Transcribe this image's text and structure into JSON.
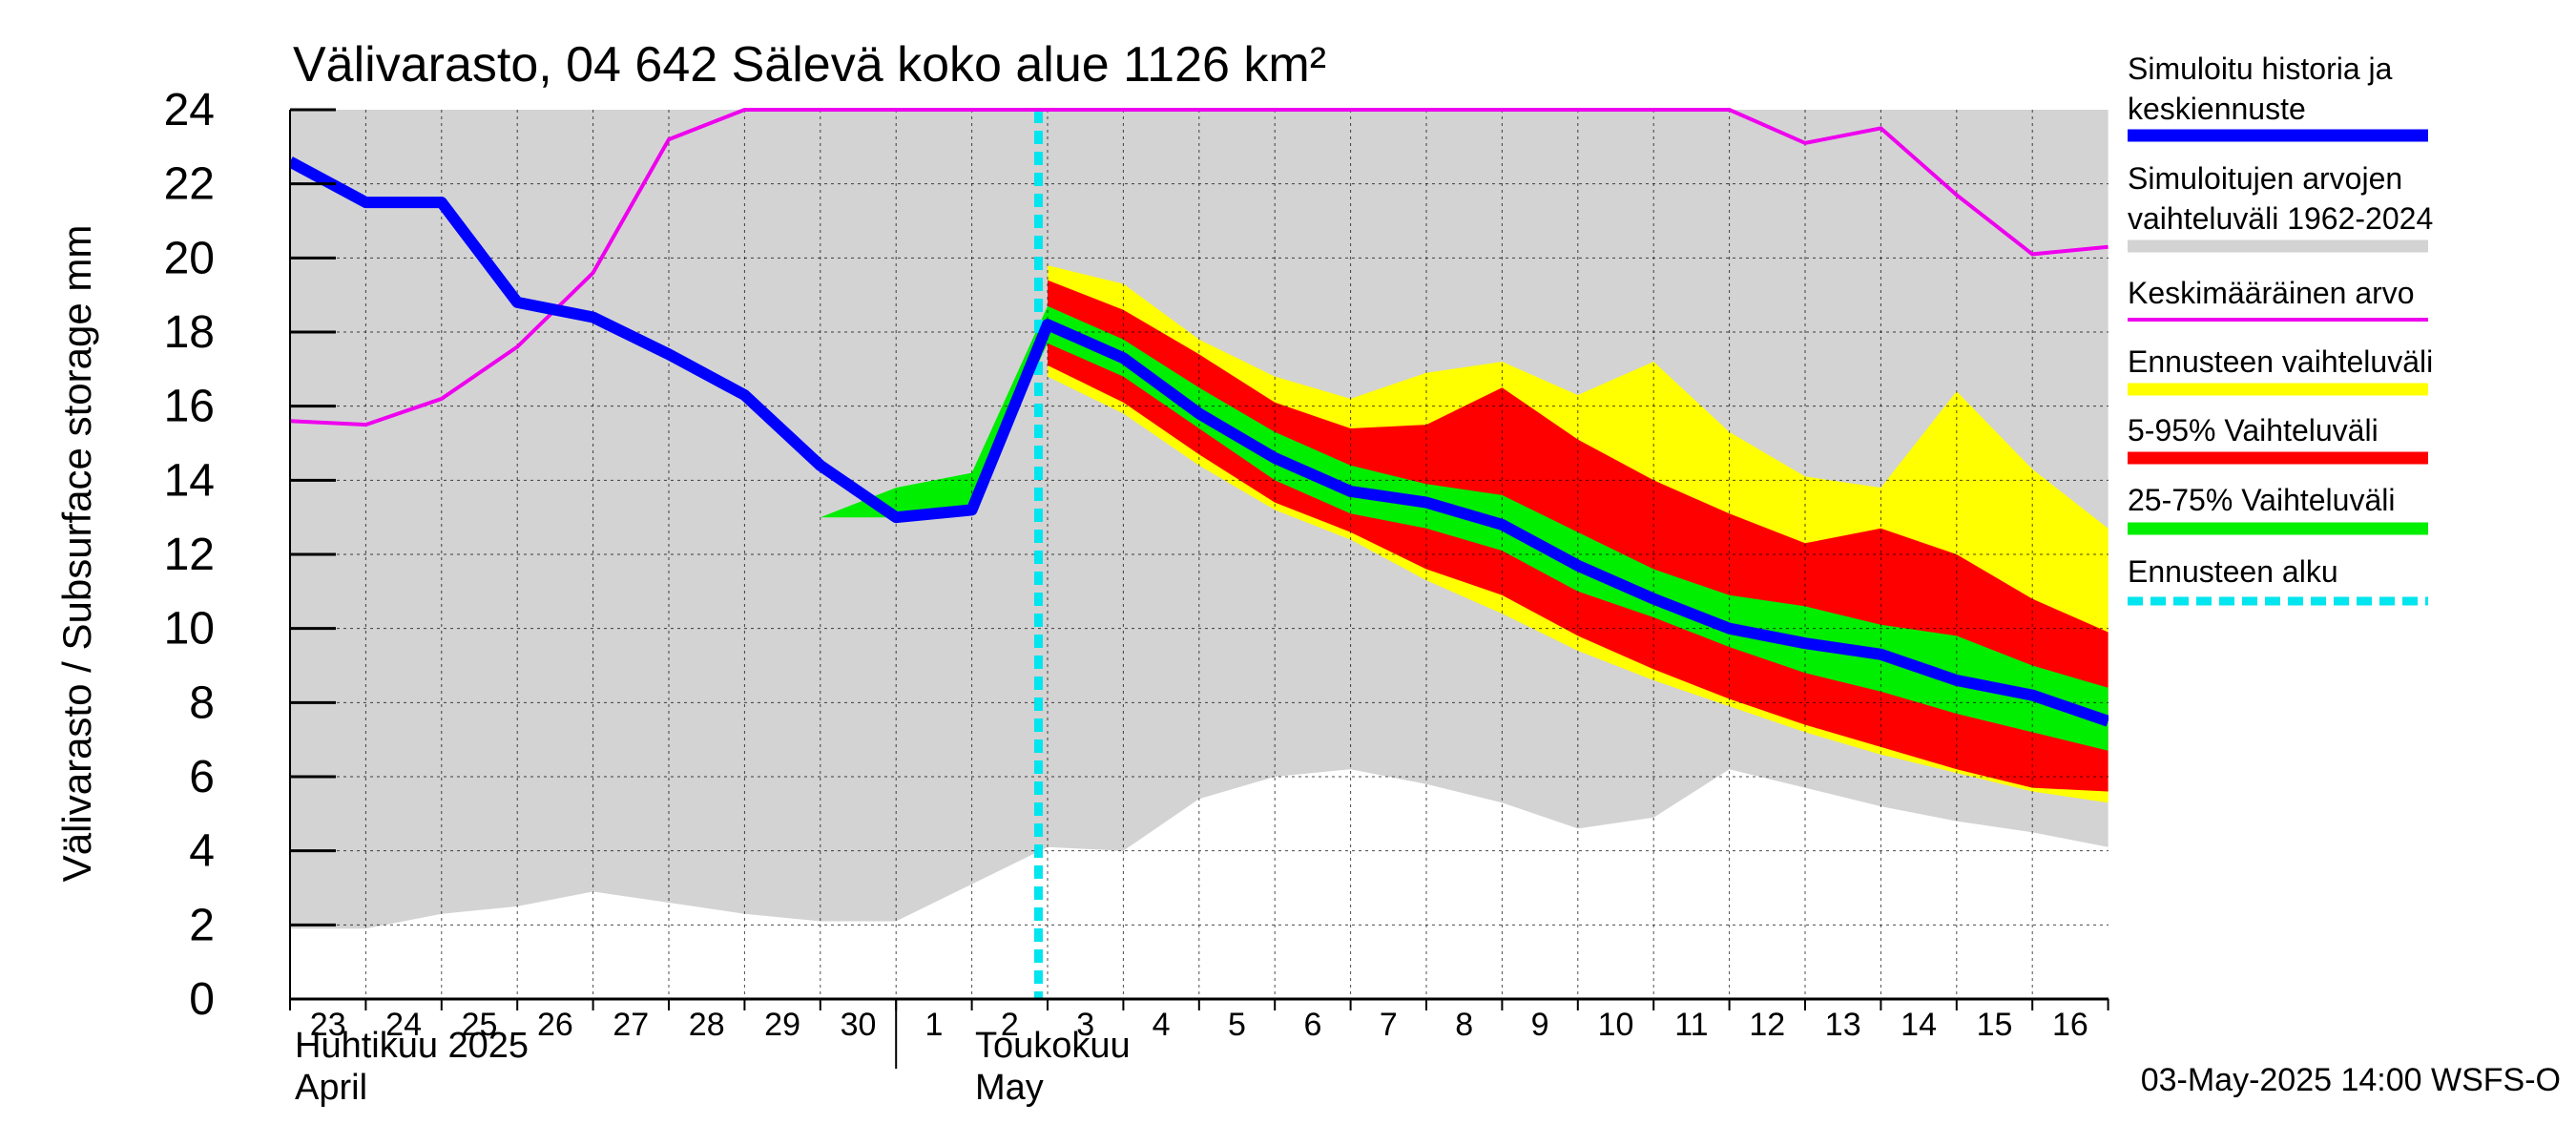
{
  "chart_data": {
    "type": "area",
    "title": "Välivarasto, 04 642 Sälevä koko alue 1126 km²",
    "ylabel": "Välivarasto / Subsurface storage  mm",
    "ylim": [
      0,
      24
    ],
    "yticks": [
      "0",
      "2",
      "4",
      "6",
      "8",
      "10",
      "12",
      "14",
      "16",
      "18",
      "20",
      "22",
      "24"
    ],
    "x_day_labels": [
      "23",
      "24",
      "25",
      "26",
      "27",
      "28",
      "29",
      "30",
      "1",
      "2",
      "3",
      "4",
      "5",
      "6",
      "7",
      "8",
      "9",
      "10",
      "11",
      "12",
      "13",
      "14",
      "15",
      "16"
    ],
    "month_labels": [
      {
        "fi": "Huhtikuu  2025",
        "en": "April"
      },
      {
        "fi": "Toukokuu",
        "en": "May"
      }
    ],
    "footer": "03-May-2025 14:00 WSFS-O",
    "forecast_start": "2025-05-03",
    "grid": true,
    "legend_position": "right",
    "legend": [
      {
        "label": "Simuloitu historia ja keskiennuste",
        "color": "#0000ff"
      },
      {
        "label": "Simuloitujen arvojen vaihteluväli 1962-2024",
        "color": "#d3d3d3"
      },
      {
        "label": "Keskimääräinen arvo",
        "color": "#ee00ee"
      },
      {
        "label": "Ennusteen vaihteluväli",
        "color": "#ffff00"
      },
      {
        "label": "5-95% Vaihteluväli",
        "color": "#ff0000"
      },
      {
        "label": "25-75% Vaihteluväli",
        "color": "#00ee00"
      },
      {
        "label": "Ennusteen alku",
        "color": "#00e5ee"
      }
    ],
    "x": [
      "2025-04-23",
      "2025-04-24",
      "2025-04-25",
      "2025-04-26",
      "2025-04-27",
      "2025-04-28",
      "2025-04-29",
      "2025-04-30",
      "2025-05-01",
      "2025-05-02",
      "2025-05-03",
      "2025-05-04",
      "2025-05-05",
      "2025-05-06",
      "2025-05-07",
      "2025-05-08",
      "2025-05-09",
      "2025-05-10",
      "2025-05-11",
      "2025-05-12",
      "2025-05-13",
      "2025-05-14",
      "2025-05-15",
      "2025-05-16",
      "2025-05-17"
    ],
    "series": [
      {
        "name": "Simuloitu historia ja keskiennuste",
        "x": [
          "2025-04-23",
          "2025-04-24",
          "2025-04-25",
          "2025-04-26",
          "2025-04-27",
          "2025-04-28",
          "2025-04-29",
          "2025-04-30",
          "2025-05-01",
          "2025-05-02",
          "2025-05-03",
          "2025-05-04",
          "2025-05-05",
          "2025-05-06",
          "2025-05-07",
          "2025-05-08",
          "2025-05-09",
          "2025-05-10",
          "2025-05-11",
          "2025-05-12",
          "2025-05-13",
          "2025-05-14",
          "2025-05-15",
          "2025-05-16",
          "2025-05-17"
        ],
        "values": [
          22.6,
          21.5,
          21.5,
          18.8,
          18.4,
          17.4,
          16.3,
          14.4,
          13.0,
          13.2,
          18.2,
          17.3,
          15.8,
          14.6,
          13.7,
          13.4,
          12.8,
          11.7,
          10.8,
          10.0,
          9.6,
          9.3,
          8.6,
          8.2,
          7.5
        ]
      },
      {
        "name": "Keskimääräinen arvo",
        "x": [
          "2025-04-23",
          "2025-04-24",
          "2025-04-25",
          "2025-04-26",
          "2025-04-27",
          "2025-04-28",
          "2025-04-29",
          "2025-05-12",
          "2025-05-13",
          "2025-05-14",
          "2025-05-15",
          "2025-05-16",
          "2025-05-17"
        ],
        "values": [
          15.6,
          15.5,
          16.2,
          17.6,
          19.6,
          23.2,
          24.0,
          24.0,
          23.1,
          23.5,
          21.7,
          20.1,
          20.3
        ]
      }
    ],
    "bands": [
      {
        "name": "Simuloitujen arvojen vaihteluväli 1962-2024",
        "x": [
          "2025-04-23",
          "2025-04-24",
          "2025-04-25",
          "2025-04-26",
          "2025-04-27",
          "2025-04-28",
          "2025-04-29",
          "2025-04-30",
          "2025-05-01",
          "2025-05-02",
          "2025-05-03",
          "2025-05-04",
          "2025-05-05",
          "2025-05-06",
          "2025-05-07",
          "2025-05-08",
          "2025-05-09",
          "2025-05-10",
          "2025-05-11",
          "2025-05-12",
          "2025-05-13",
          "2025-05-14",
          "2025-05-15",
          "2025-05-16",
          "2025-05-17"
        ],
        "low": [
          1.9,
          1.9,
          2.3,
          2.5,
          2.9,
          2.6,
          2.3,
          2.1,
          2.1,
          3.1,
          4.1,
          4.0,
          5.4,
          6.0,
          6.2,
          5.8,
          5.3,
          4.6,
          4.9,
          6.2,
          5.7,
          5.2,
          4.8,
          4.5,
          4.1
        ],
        "high": [
          24,
          24,
          24,
          24,
          24,
          24,
          24,
          24,
          24,
          24,
          24,
          24,
          24,
          24,
          24,
          24,
          24,
          24,
          24,
          24,
          24,
          24,
          24,
          24,
          24
        ]
      },
      {
        "name": "Ennusteen vaihteluväli",
        "x": [
          "2025-05-03",
          "2025-05-04",
          "2025-05-05",
          "2025-05-06",
          "2025-05-07",
          "2025-05-08",
          "2025-05-09",
          "2025-05-10",
          "2025-05-11",
          "2025-05-12",
          "2025-05-13",
          "2025-05-14",
          "2025-05-15",
          "2025-05-16",
          "2025-05-17"
        ],
        "low": [
          16.8,
          15.8,
          14.4,
          13.2,
          12.4,
          11.3,
          10.4,
          9.4,
          8.6,
          7.9,
          7.2,
          6.6,
          6.1,
          5.6,
          5.3
        ],
        "high": [
          19.8,
          19.3,
          17.8,
          16.8,
          16.2,
          16.9,
          17.2,
          16.3,
          17.2,
          15.3,
          14.1,
          13.8,
          16.4,
          14.3,
          12.7
        ]
      },
      {
        "name": "5-95% Vaihteluväli",
        "x": [
          "2025-05-03",
          "2025-05-04",
          "2025-05-05",
          "2025-05-06",
          "2025-05-07",
          "2025-05-08",
          "2025-05-09",
          "2025-05-10",
          "2025-05-11",
          "2025-05-12",
          "2025-05-13",
          "2025-05-14",
          "2025-05-15",
          "2025-05-16",
          "2025-05-17"
        ],
        "low": [
          17.1,
          16.1,
          14.7,
          13.4,
          12.6,
          11.6,
          10.9,
          9.8,
          8.9,
          8.1,
          7.4,
          6.8,
          6.2,
          5.7,
          5.6
        ],
        "high": [
          19.4,
          18.6,
          17.4,
          16.1,
          15.4,
          15.5,
          16.5,
          15.1,
          14.0,
          13.1,
          12.3,
          12.7,
          12.0,
          10.8,
          9.9
        ]
      },
      {
        "name": "25-75% Vaihteluväli",
        "x": [
          "2025-04-30",
          "2025-05-01",
          "2025-05-02",
          "2025-05-03",
          "2025-05-04",
          "2025-05-05",
          "2025-05-06",
          "2025-05-07",
          "2025-05-08",
          "2025-05-09",
          "2025-05-10",
          "2025-05-11",
          "2025-05-12",
          "2025-05-13",
          "2025-05-14",
          "2025-05-15",
          "2025-05-16",
          "2025-05-17"
        ],
        "low": [
          13.0,
          13.0,
          13.2,
          17.7,
          16.8,
          15.4,
          14.0,
          13.1,
          12.7,
          12.1,
          11.0,
          10.3,
          9.5,
          8.8,
          8.3,
          7.7,
          7.2,
          6.7
        ],
        "high": [
          13.0,
          13.8,
          14.2,
          18.7,
          17.8,
          16.5,
          15.3,
          14.4,
          13.9,
          13.6,
          12.6,
          11.6,
          10.9,
          10.6,
          10.1,
          9.8,
          9.0,
          8.4
        ]
      }
    ]
  }
}
